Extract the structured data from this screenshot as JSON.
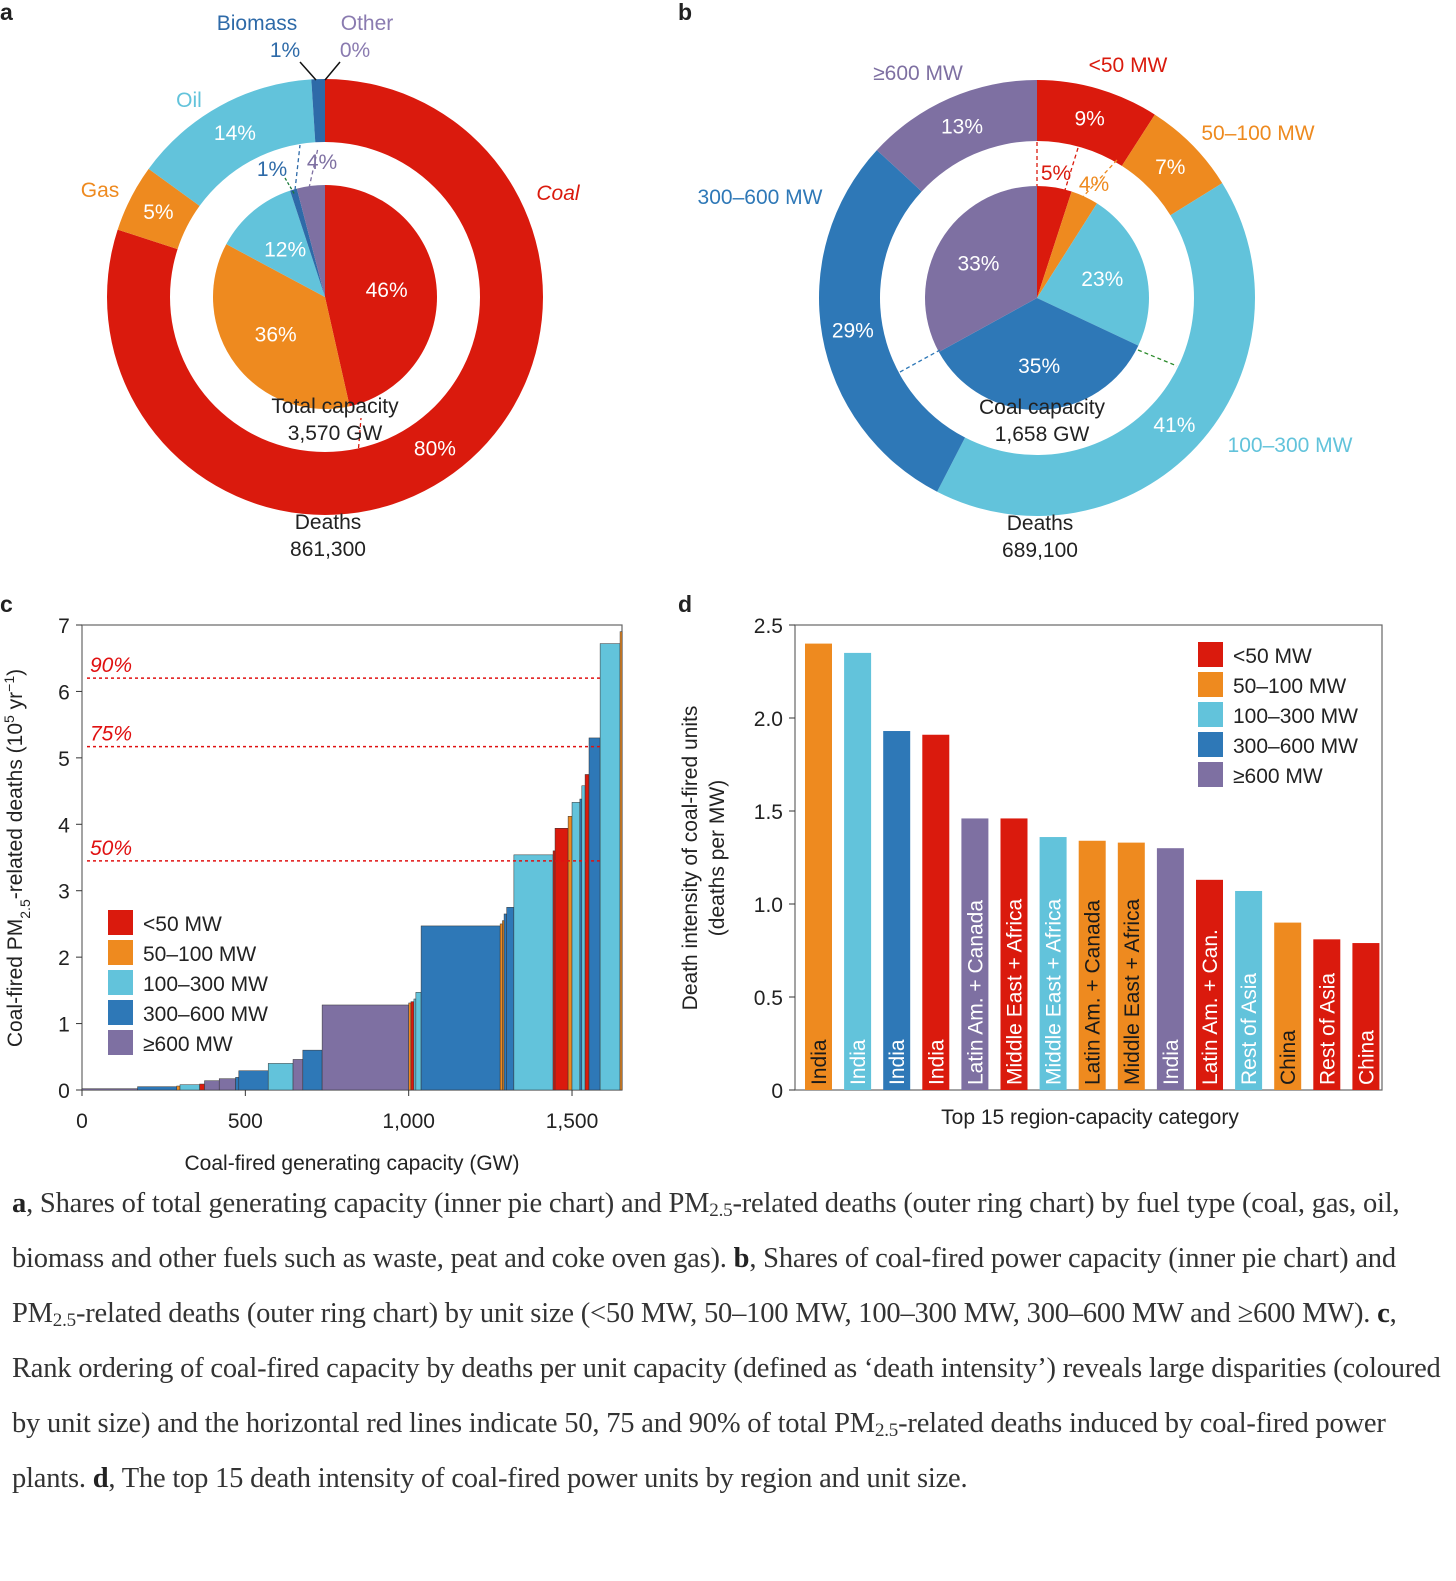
{
  "colors": {
    "lt50": "#da1a0d",
    "50_100": "#ee8a1f",
    "100_300": "#62c3db",
    "300_600": "#2e78b7",
    "ge600": "#7e70a2",
    "threshold": "#e01010"
  },
  "chart_data": [
    {
      "panel": "a",
      "type": "pie",
      "title": "",
      "inner": {
        "name": "Total capacity",
        "total": "3,570 GW",
        "categories": [
          "Coal",
          "Gas",
          "Oil",
          "Biomass",
          "Other"
        ],
        "values": [
          46,
          36,
          12,
          1,
          4
        ],
        "labels": [
          "46%",
          "36%",
          "12%",
          "1%",
          "4%"
        ]
      },
      "outer": {
        "name": "Deaths",
        "total": "861,300",
        "categories": [
          "Coal",
          "Gas",
          "Oil",
          "Biomass",
          "Other"
        ],
        "values": [
          80,
          5,
          14,
          1,
          0
        ],
        "labels": [
          "80%",
          "5%",
          "14%",
          "1%",
          "0%"
        ]
      },
      "category_labels": [
        "Coal",
        "Gas",
        "Oil",
        "Biomass",
        "Other"
      ]
    },
    {
      "panel": "b",
      "type": "pie",
      "inner": {
        "name": "Coal capacity",
        "total": "1,658 GW",
        "categories": [
          "<50 MW",
          "50–100 MW",
          "100–300 MW",
          "300–600 MW",
          "≥600 MW"
        ],
        "values": [
          5,
          4,
          23,
          35,
          33
        ],
        "labels": [
          "5%",
          "4%",
          "23%",
          "35%",
          "33%"
        ]
      },
      "outer": {
        "name": "Deaths",
        "total": "689,100",
        "categories": [
          "<50 MW",
          "50–100 MW",
          "100–300 MW",
          "300–600 MW",
          "≥600 MW"
        ],
        "values": [
          9,
          7,
          41,
          29,
          13
        ],
        "labels": [
          "9%",
          "7%",
          "41%",
          "29%",
          "13%"
        ]
      },
      "category_labels": [
        "<50 MW",
        "50–100 MW",
        "100–300 MW",
        "300–600 MW",
        "≥600 MW"
      ]
    },
    {
      "panel": "c",
      "type": "area",
      "xlabel": "Coal-fired generating capacity (GW)",
      "ylabel_parts": [
        "Coal-fired PM",
        "2.5",
        "-related deaths (10",
        "5",
        " yr",
        "−1",
        ")"
      ],
      "xlim": [
        0,
        1653
      ],
      "ylim": [
        0,
        7
      ],
      "xticks": [
        0,
        500,
        1000,
        1500
      ],
      "xtick_labels": [
        "0",
        "500",
        "1,000",
        "1,500"
      ],
      "yticks": [
        0,
        1,
        2,
        3,
        4,
        5,
        6,
        7
      ],
      "ytick_labels": [
        "0",
        "1",
        "2",
        "3",
        "4",
        "5",
        "6",
        "7"
      ],
      "thresholds": [
        {
          "label": "50%",
          "y": 3.45
        },
        {
          "label": "75%",
          "y": 5.17
        },
        {
          "label": "90%",
          "y": 6.2
        }
      ],
      "legend": {
        "position": "left-middle",
        "items": [
          {
            "label": "<50 MW",
            "key": "lt50"
          },
          {
            "label": "50–100 MW",
            "key": "50_100"
          },
          {
            "label": "100–300 MW",
            "key": "100_300"
          },
          {
            "label": "300–600 MW",
            "key": "300_600"
          },
          {
            "label": "≥600 MW",
            "key": "ge600"
          }
        ]
      },
      "segments": [
        {
          "x0": 0,
          "x1": 170,
          "y": 0.02,
          "cat": "ge600"
        },
        {
          "x0": 170,
          "x1": 290,
          "y": 0.05,
          "cat": "300_600"
        },
        {
          "x0": 290,
          "x1": 300,
          "y": 0.06,
          "cat": "50_100"
        },
        {
          "x0": 300,
          "x1": 360,
          "y": 0.08,
          "cat": "100_300"
        },
        {
          "x0": 360,
          "x1": 375,
          "y": 0.09,
          "cat": "lt50"
        },
        {
          "x0": 375,
          "x1": 420,
          "y": 0.14,
          "cat": "ge600"
        },
        {
          "x0": 420,
          "x1": 470,
          "y": 0.17,
          "cat": "ge600"
        },
        {
          "x0": 470,
          "x1": 480,
          "y": 0.19,
          "cat": "300_600"
        },
        {
          "x0": 480,
          "x1": 570,
          "y": 0.29,
          "cat": "300_600"
        },
        {
          "x0": 570,
          "x1": 646,
          "y": 0.4,
          "cat": "100_300"
        },
        {
          "x0": 646,
          "x1": 676,
          "y": 0.46,
          "cat": "ge600"
        },
        {
          "x0": 676,
          "x1": 735,
          "y": 0.6,
          "cat": "300_600"
        },
        {
          "x0": 735,
          "x1": 1000,
          "y": 1.28,
          "cat": "ge600"
        },
        {
          "x0": 1000,
          "x1": 1007,
          "y": 1.31,
          "cat": "50_100"
        },
        {
          "x0": 1007,
          "x1": 1016,
          "y": 1.33,
          "cat": "lt50"
        },
        {
          "x0": 1016,
          "x1": 1022,
          "y": 1.37,
          "cat": "100_300"
        },
        {
          "x0": 1022,
          "x1": 1038,
          "y": 1.47,
          "cat": "100_300"
        },
        {
          "x0": 1038,
          "x1": 1280,
          "y": 2.47,
          "cat": "300_600"
        },
        {
          "x0": 1280,
          "x1": 1287,
          "y": 2.5,
          "cat": "50_100"
        },
        {
          "x0": 1287,
          "x1": 1292,
          "y": 2.55,
          "cat": "50_100"
        },
        {
          "x0": 1292,
          "x1": 1300,
          "y": 2.65,
          "cat": "300_600"
        },
        {
          "x0": 1300,
          "x1": 1322,
          "y": 2.75,
          "cat": "300_600"
        },
        {
          "x0": 1322,
          "x1": 1442,
          "y": 3.54,
          "cat": "100_300"
        },
        {
          "x0": 1442,
          "x1": 1448,
          "y": 3.6,
          "cat": "lt50"
        },
        {
          "x0": 1448,
          "x1": 1488,
          "y": 3.94,
          "cat": "lt50"
        },
        {
          "x0": 1488,
          "x1": 1500,
          "y": 4.12,
          "cat": "50_100"
        },
        {
          "x0": 1500,
          "x1": 1524,
          "y": 4.33,
          "cat": "100_300"
        },
        {
          "x0": 1524,
          "x1": 1530,
          "y": 4.38,
          "cat": "300_600"
        },
        {
          "x0": 1530,
          "x1": 1540,
          "y": 4.58,
          "cat": "100_300"
        },
        {
          "x0": 1540,
          "x1": 1552,
          "y": 4.75,
          "cat": "lt50"
        },
        {
          "x0": 1552,
          "x1": 1586,
          "y": 5.3,
          "cat": "300_600"
        },
        {
          "x0": 1586,
          "x1": 1647,
          "y": 6.72,
          "cat": "100_300"
        },
        {
          "x0": 1647,
          "x1": 1653,
          "y": 6.9,
          "cat": "50_100"
        }
      ]
    },
    {
      "panel": "d",
      "type": "bar",
      "xlabel": "Top 15 region-capacity category",
      "ylabel": "Death intensity of coal-fired units",
      "ylabel2": "(deaths per MW)",
      "ylim": [
        0,
        2.5
      ],
      "yticks": [
        0,
        0.5,
        1.0,
        1.5,
        2.0,
        2.5
      ],
      "ytick_labels": [
        "0",
        "0.5",
        "1.0",
        "1.5",
        "2.0",
        "2.5"
      ],
      "legend": {
        "position": "top-right",
        "items": [
          {
            "label": "<50 MW",
            "key": "lt50"
          },
          {
            "label": "50–100 MW",
            "key": "50_100"
          },
          {
            "label": "100–300 MW",
            "key": "100_300"
          },
          {
            "label": "300–600 MW",
            "key": "300_600"
          },
          {
            "label": "≥600 MW",
            "key": "ge600"
          }
        ]
      },
      "categories": [
        "India",
        "India",
        "India",
        "India",
        "Latin Am. + Canada",
        "Middle East + Africa",
        "Middle East + Africa",
        "Latin Am. + Canada",
        "Middle East + Africa",
        "India",
        "Latin Am. + Can.",
        "Rest of Asia",
        "China",
        "Rest of Asia",
        "China"
      ],
      "values": [
        2.4,
        2.35,
        1.93,
        1.91,
        1.46,
        1.46,
        1.36,
        1.34,
        1.33,
        1.3,
        1.13,
        1.07,
        0.9,
        0.81,
        0.79
      ],
      "size_class": [
        "50_100",
        "100_300",
        "300_600",
        "lt50",
        "ge600",
        "lt50",
        "100_300",
        "50_100",
        "50_100",
        "ge600",
        "lt50",
        "100_300",
        "50_100",
        "lt50",
        "lt50"
      ]
    }
  ],
  "panel_letters": [
    "a",
    "b",
    "c",
    "d"
  ],
  "caption": [
    {
      "k": "b",
      "t": "a"
    },
    {
      "k": "t",
      "t": ", Shares of total generating capacity (inner pie chart) and PM"
    },
    {
      "k": "sub",
      "t": "2.5"
    },
    {
      "k": "t",
      "t": "-related deaths (outer ring chart) by fuel type (coal, gas, oil, biomass and other fuels such as waste, peat and coke oven gas). "
    },
    {
      "k": "b",
      "t": "b"
    },
    {
      "k": "t",
      "t": ", Shares of coal-fired power capacity (inner pie chart) and PM"
    },
    {
      "k": "sub",
      "t": "2.5"
    },
    {
      "k": "t",
      "t": "-related deaths (outer ring chart) by unit size (<50 MW, 50–100 MW, 100–300 MW, 300–600 MW and ≥600 MW). "
    },
    {
      "k": "b",
      "t": "c"
    },
    {
      "k": "t",
      "t": ", Rank ordering of coal-fired capacity by deaths per unit capacity (defined as ‘death intensity’) reveals large disparities (coloured by unit size) and the horizontal red lines indicate 50, 75 and 90% of total PM"
    },
    {
      "k": "sub",
      "t": "2.5"
    },
    {
      "k": "t",
      "t": "-related deaths induced by coal-fired power plants. "
    },
    {
      "k": "b",
      "t": "d"
    },
    {
      "k": "t",
      "t": ", The top 15 death intensity of coal-fired power units by region and unit size."
    }
  ]
}
